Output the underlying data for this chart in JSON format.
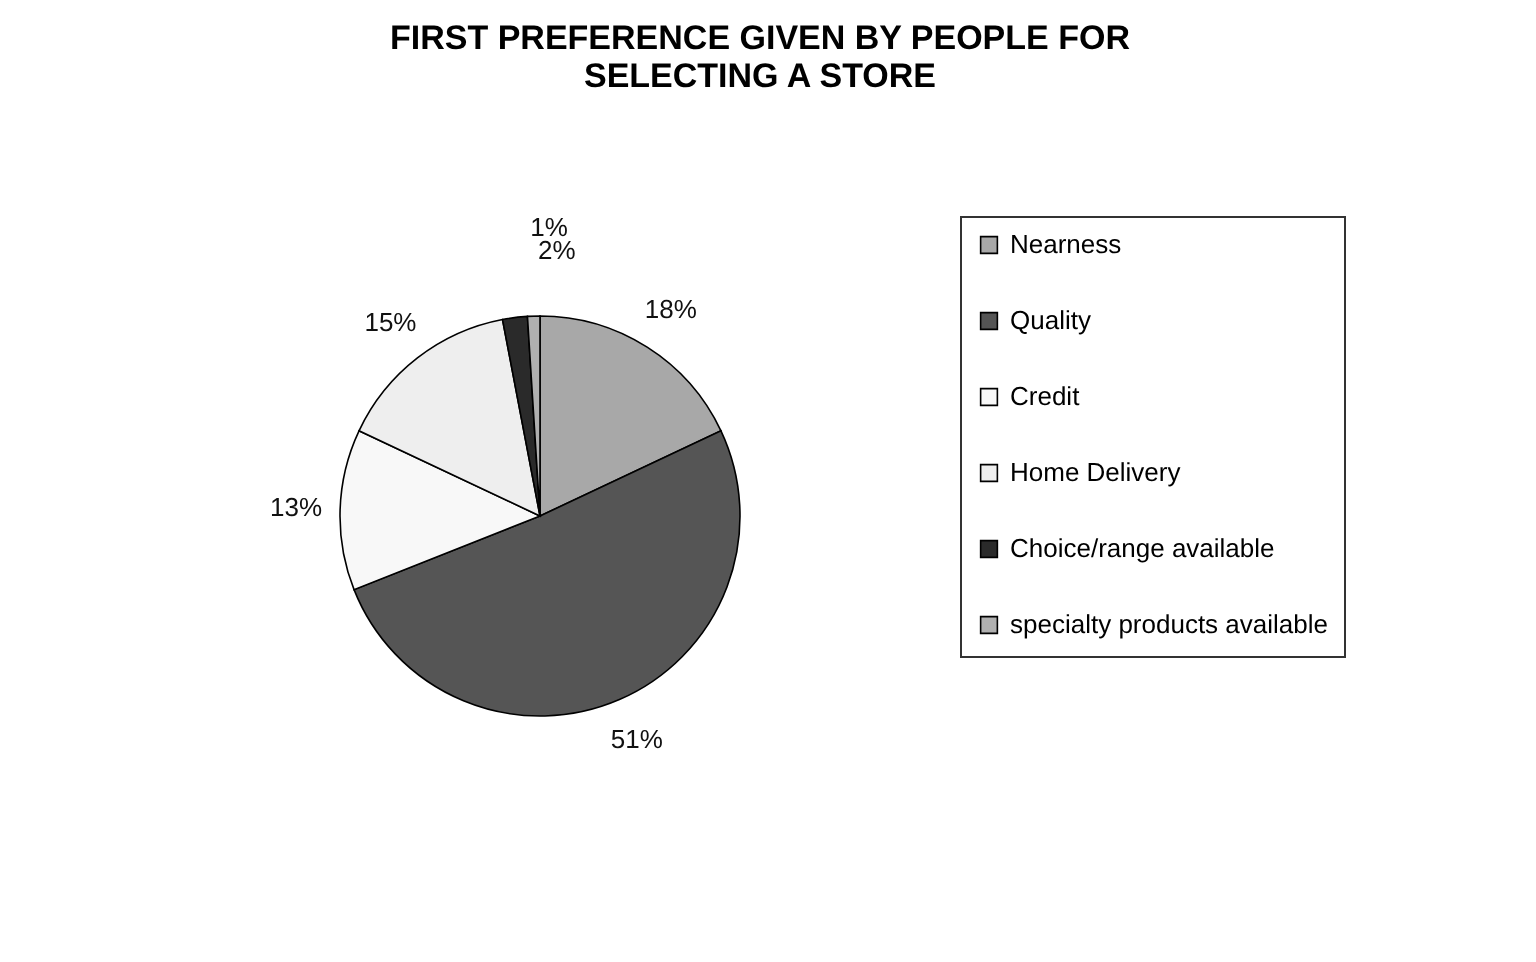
{
  "chart_data": {
    "type": "pie",
    "title": "FIRST PREFERENCE GIVEN BY PEOPLE FOR SELECTING A STORE",
    "categories": [
      "Nearness",
      "Quality",
      "Credit",
      "Home Delivery",
      "Choice/range available",
      "specialty products available"
    ],
    "values": [
      18,
      51,
      13,
      15,
      2,
      1
    ],
    "colors": [
      "#a8a8a8",
      "#555555",
      "#f8f8f8",
      "#eeeeee",
      "#2a2a2a",
      "#b0b0b0"
    ],
    "value_labels": [
      "18%",
      "51%",
      "13%",
      "15%",
      "2%",
      "1%"
    ],
    "legend": "right"
  }
}
